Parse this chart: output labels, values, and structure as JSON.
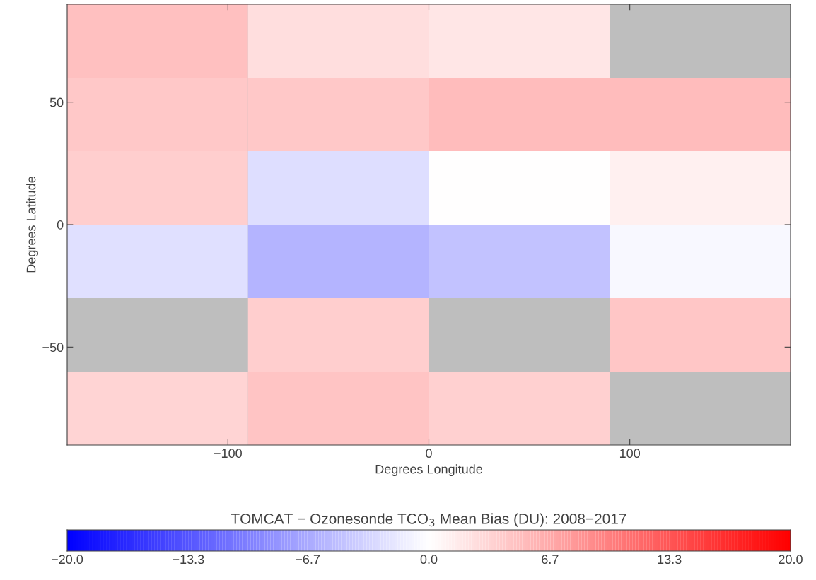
{
  "chart_data": {
    "type": "heatmap",
    "xlabel": "Degrees Longitude",
    "ylabel": "Degrees Latitude",
    "clabel": "TOMCAT − Ozonesonde TCO$_{3}$ Mean Bias (DU): 2008−2017",
    "x": [
      -135,
      -45,
      45,
      135
    ],
    "y": [
      75,
      45,
      15,
      -15,
      -45,
      -75
    ],
    "xlim": [
      -180,
      180
    ],
    "ylim": [
      -90,
      90
    ],
    "xticks": [
      {
        "value": -100,
        "label": "−100"
      },
      0,
      100
    ],
    "yticks": [
      {
        "value": -50,
        "label": "−50"
      },
      0,
      50
    ],
    "cells": [
      [
        4.9,
        2.6,
        2.0,
        null
      ],
      [
        4.3,
        4.3,
        5.3,
        5.3
      ],
      [
        3.9,
        -2.6,
        0.0,
        1.2
      ],
      [
        -2.4,
        -5.9,
        -4.7,
        -0.5
      ],
      [
        null,
        3.9,
        null,
        4.5
      ],
      [
        3.4,
        4.6,
        3.7,
        null
      ]
    ],
    "colors": [
      "#0000ff",
      "#ffffff",
      "#ff0000"
    ],
    "clim": [
      -20,
      20
    ],
    "cticks": [
      {
        "value": -20,
        "label": "−20.0"
      },
      {
        "value": -13.3,
        "label": "−13.3"
      },
      {
        "value": -6.7,
        "label": "−6.7"
      },
      {
        "value": 0,
        "label": "0.0"
      },
      {
        "value": 6.7,
        "label": "6.7"
      },
      {
        "value": 13.3,
        "label": "13.3"
      },
      {
        "value": 20,
        "label": "20.0"
      }
    ],
    "grid": false
  }
}
